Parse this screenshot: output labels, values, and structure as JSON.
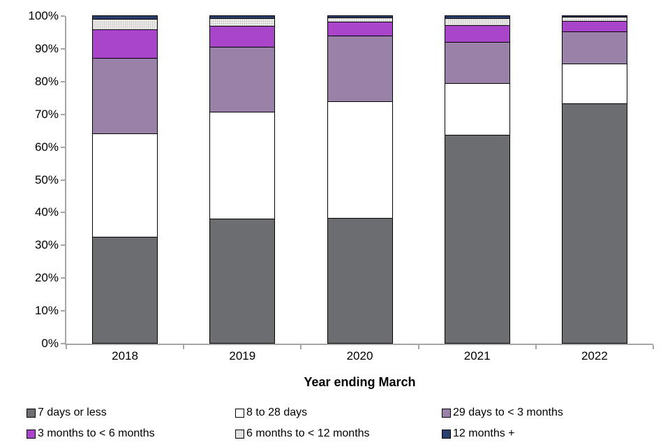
{
  "chart_data": {
    "type": "bar",
    "stacked": true,
    "percent": true,
    "title": "",
    "xlabel": "Year ending March",
    "ylabel": "",
    "categories": [
      "2018",
      "2019",
      "2020",
      "2021",
      "2022"
    ],
    "y_ticks": [
      "0%",
      "10%",
      "20%",
      "30%",
      "40%",
      "50%",
      "60%",
      "70%",
      "80%",
      "90%",
      "100%"
    ],
    "ylim": [
      0,
      100
    ],
    "grid": false,
    "legend_position": "bottom",
    "axis_color": "#a6a6a6",
    "series": [
      {
        "name": "7 days or less",
        "color": "#6c6d70",
        "values": [
          32.5,
          38.0,
          38.2,
          63.5,
          73.2
        ]
      },
      {
        "name": "8 to 28 days",
        "color": "#ffffff",
        "values": [
          31.5,
          32.5,
          35.5,
          15.9,
          12.0
        ]
      },
      {
        "name": "29 days to < 3 months",
        "color": "#9981a8",
        "values": [
          23.0,
          20.0,
          20.2,
          12.6,
          9.8
        ]
      },
      {
        "name": "3 months to < 6 months",
        "color": "#a845c8",
        "values": [
          8.7,
          6.2,
          4.1,
          5.1,
          3.2
        ]
      },
      {
        "name": "6 months to < 12 months",
        "color": "#eeedeb",
        "pattern": "dots",
        "values": [
          3.3,
          2.5,
          1.4,
          2.0,
          1.4
        ]
      },
      {
        "name": "12 months +",
        "color": "#2b3f6e",
        "values": [
          1.0,
          0.8,
          0.6,
          0.9,
          0.4
        ]
      }
    ],
    "legend_columns_x": [
      0,
      299,
      595
    ]
  }
}
